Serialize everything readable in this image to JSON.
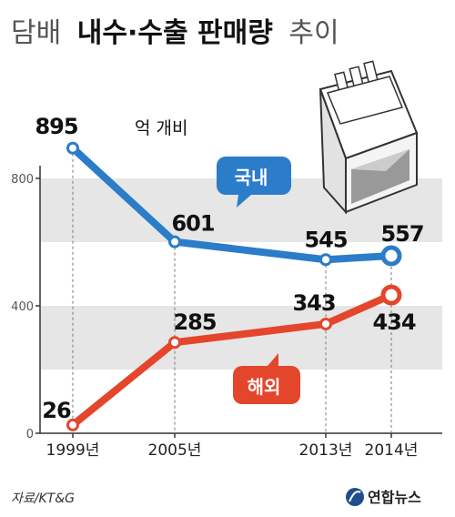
{
  "title": {
    "part1": "담배",
    "part2": "내수·수출 판매량",
    "part3": "추이"
  },
  "source": "자료/KT&G",
  "logo_text": "연합뉴스",
  "unit_annotation": "억 개비",
  "chart_data": {
    "type": "line",
    "x": [
      "1999년",
      "2005년",
      "2013년",
      "2014년"
    ],
    "ylim": [
      0,
      900
    ],
    "yticks": [
      "0",
      "400",
      "800"
    ],
    "grid": "horizontal bands",
    "series": [
      {
        "name": "국내",
        "color": "#2b7cc9",
        "values": [
          895,
          601,
          545,
          557
        ],
        "labels": [
          "895",
          "601",
          "545",
          "557"
        ]
      },
      {
        "name": "해외",
        "color": "#e4462c",
        "values": [
          26,
          285,
          343,
          434
        ],
        "labels": [
          "26",
          "285",
          "343",
          "434"
        ]
      }
    ]
  }
}
